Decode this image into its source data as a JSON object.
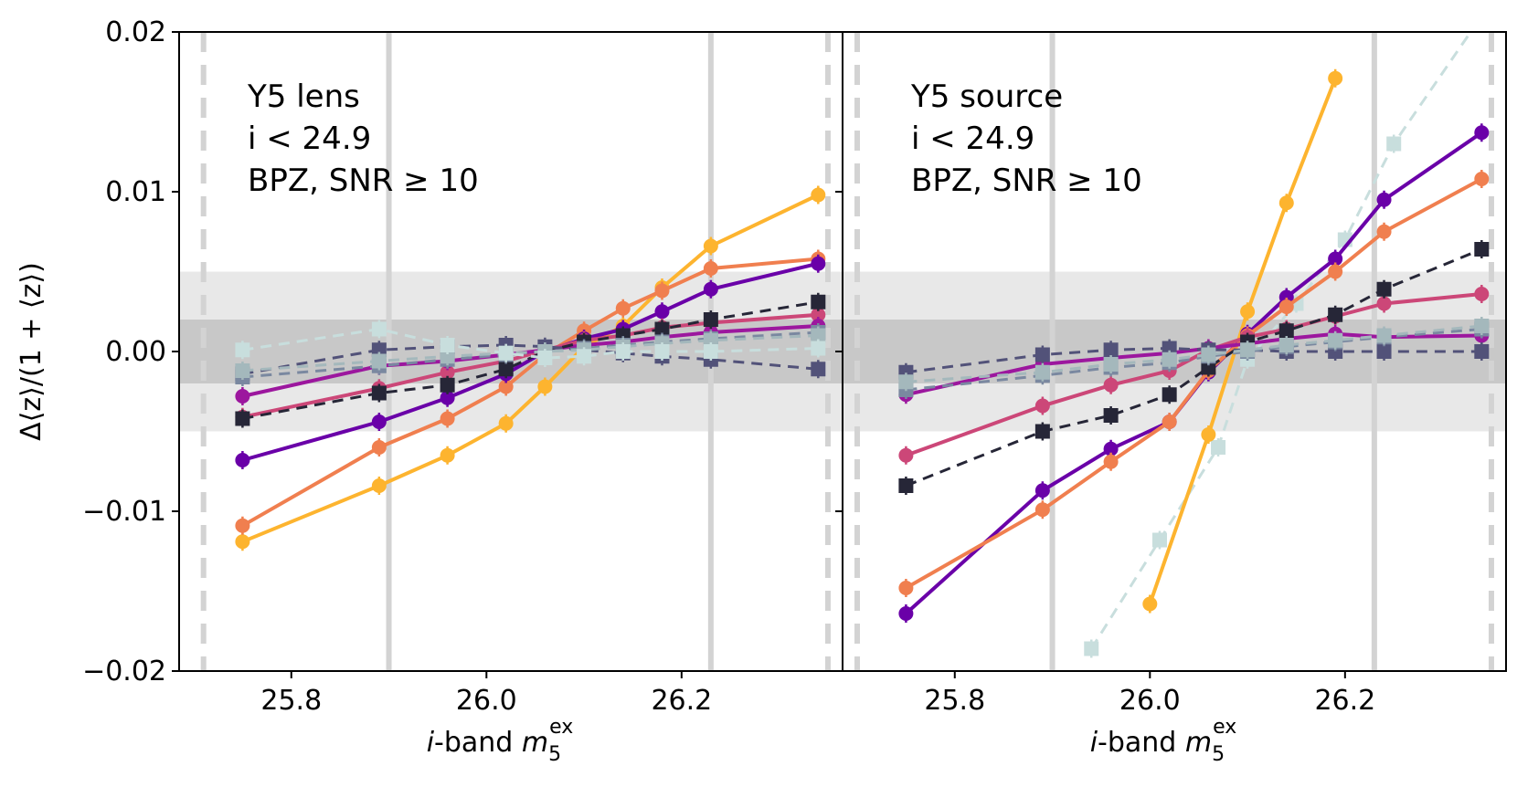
{
  "chart_data": {
    "type": "line",
    "ylabel": "Δ⟨z⟩/(1 + ⟨z⟩)",
    "ylim": [
      -0.02,
      0.02
    ],
    "yticks": [
      {
        "value": 0.02,
        "label": "0.02"
      },
      {
        "value": 0.01,
        "label": "0.01"
      },
      {
        "value": 0.0,
        "label": "0.00"
      },
      {
        "value": -0.01,
        "label": "−0.01"
      },
      {
        "value": -0.02,
        "label": "−0.02"
      }
    ],
    "xlabel": {
      "prefix": "i",
      "mid": "-band ",
      "var": "m",
      "sub": "5",
      "sup": "ex"
    },
    "xlim": [
      25.685,
      26.365
    ],
    "xticks": [
      {
        "value": 25.8,
        "label": "25.8"
      },
      {
        "value": 26.0,
        "label": "26.0"
      },
      {
        "value": 26.2,
        "label": "26.2"
      }
    ],
    "bands": [
      {
        "y0": -0.005,
        "y1": 0.005,
        "color": "#e8e8e8"
      },
      {
        "y0": -0.002,
        "y1": 0.002,
        "color": "#c8c8c8"
      }
    ],
    "panels": [
      {
        "id": "lens",
        "annotation": [
          "Y5 lens",
          "i < 24.9",
          "BPZ, SNR ≥ 10"
        ],
        "vlines_solid": [
          25.9,
          26.23
        ],
        "vlines_dashed": [
          25.71,
          26.35
        ],
        "series": [
          {
            "color": "#fdb42f",
            "style": "solid",
            "marker": "circle",
            "x": [
              25.75,
              25.89,
              25.96,
              26.02,
              26.06,
              26.1,
              26.14,
              26.18,
              26.23,
              26.34
            ],
            "y": [
              -0.0119,
              -0.0084,
              -0.0065,
              -0.0045,
              -0.0022,
              0.0003,
              0.0016,
              0.004,
              0.0066,
              0.0098
            ]
          },
          {
            "color": "#f07f4f",
            "style": "solid",
            "marker": "circle",
            "x": [
              25.75,
              25.89,
              25.96,
              26.02,
              26.06,
              26.1,
              26.14,
              26.18,
              26.23,
              26.34
            ],
            "y": [
              -0.0109,
              -0.006,
              -0.0042,
              -0.0022,
              -0.0002,
              0.0013,
              0.0027,
              0.0038,
              0.0052,
              0.0058
            ]
          },
          {
            "color": "#6a00a8",
            "style": "solid",
            "marker": "circle",
            "x": [
              25.75,
              25.89,
              25.96,
              26.02,
              26.06,
              26.1,
              26.14,
              26.18,
              26.23,
              26.34
            ],
            "y": [
              -0.0068,
              -0.0044,
              -0.0029,
              -0.0014,
              0.0,
              0.0008,
              0.0014,
              0.0025,
              0.0039,
              0.0055
            ]
          },
          {
            "color": "#cc4778",
            "style": "solid",
            "marker": "circle",
            "x": [
              25.75,
              25.89,
              25.96,
              26.02,
              26.06,
              26.1,
              26.14,
              26.18,
              26.23,
              26.34
            ],
            "y": [
              -0.0041,
              -0.0023,
              -0.0013,
              -0.0006,
              0.0001,
              0.0007,
              0.001,
              0.0015,
              0.0018,
              0.0023
            ]
          },
          {
            "color": "#9c179e",
            "style": "solid",
            "marker": "circle",
            "x": [
              25.75,
              25.89,
              25.96,
              26.02,
              26.06,
              26.1,
              26.14,
              26.18,
              26.23,
              26.34
            ],
            "y": [
              -0.0028,
              -0.0009,
              -0.0006,
              -0.0002,
              0.0001,
              0.0004,
              0.0006,
              0.0009,
              0.0012,
              0.0016
            ]
          },
          {
            "color": "#262637",
            "style": "dashed",
            "marker": "square",
            "x": [
              25.75,
              25.89,
              25.96,
              26.02,
              26.06,
              26.1,
              26.14,
              26.18,
              26.23,
              26.34
            ],
            "y": [
              -0.0042,
              -0.0026,
              -0.0021,
              -0.0011,
              0.0,
              0.0006,
              0.001,
              0.0014,
              0.002,
              0.0031
            ]
          },
          {
            "color": "#525279",
            "style": "dashed",
            "marker": "square",
            "x": [
              25.75,
              25.89,
              25.96,
              26.02,
              26.06,
              26.1,
              26.14,
              26.18,
              26.23,
              26.34
            ],
            "y": [
              -0.0014,
              0.0001,
              0.0003,
              0.0004,
              0.0003,
              0.0001,
              -0.0001,
              -0.0003,
              -0.0005,
              -0.0011
            ]
          },
          {
            "color": "#7a88a0",
            "style": "dashed",
            "marker": "square",
            "x": [
              25.75,
              25.89,
              25.96,
              26.02,
              26.06,
              26.1,
              26.14,
              26.18,
              26.23,
              26.34
            ],
            "y": [
              -0.0016,
              -0.0009,
              -0.0005,
              -0.0002,
              0.0,
              0.0002,
              0.0004,
              0.0006,
              0.0008,
              0.0012
            ]
          },
          {
            "color": "#a4b8bc",
            "style": "dashed",
            "marker": "square",
            "x": [
              25.75,
              25.89,
              25.96,
              26.02,
              26.06,
              26.1,
              26.14,
              26.18,
              26.23,
              26.34
            ],
            "y": [
              -0.0012,
              -0.0006,
              -0.0003,
              -0.0001,
              0.0,
              0.0001,
              0.0003,
              0.0005,
              0.0007,
              0.001
            ]
          },
          {
            "color": "#c8dedd",
            "style": "dashed",
            "marker": "square",
            "x": [
              25.75,
              25.89,
              25.96,
              26.02,
              26.06,
              26.1,
              26.14,
              26.18,
              26.23,
              26.34
            ],
            "y": [
              0.0001,
              0.0014,
              0.0004,
              -0.0001,
              -0.0004,
              -0.0003,
              0.0,
              0.0,
              0.0,
              0.0002
            ]
          }
        ]
      },
      {
        "id": "source",
        "annotation": [
          "Y5 source",
          "i < 24.9",
          "BPZ, SNR ≥ 10"
        ],
        "vlines_solid": [
          25.9,
          26.23
        ],
        "vlines_dashed": [
          25.7,
          26.35
        ],
        "series": [
          {
            "color": "#c8dedd",
            "style": "dashed",
            "marker": "square",
            "x": [
              25.94,
              26.01,
              26.07,
              26.1,
              26.15,
              26.2,
              26.25,
              26.34
            ],
            "y": [
              -0.0186,
              -0.0118,
              -0.006,
              -0.0005,
              0.003,
              0.007,
              0.013,
              0.021
            ]
          },
          {
            "color": "#fdb42f",
            "style": "solid",
            "marker": "circle",
            "x": [
              26.0,
              26.06,
              26.1,
              26.14,
              26.19
            ],
            "y": [
              -0.0158,
              -0.0052,
              0.0025,
              0.0093,
              0.0171
            ]
          },
          {
            "color": "#6a00a8",
            "style": "solid",
            "marker": "circle",
            "x": [
              25.75,
              25.89,
              25.96,
              26.02,
              26.06,
              26.1,
              26.14,
              26.19,
              26.24,
              26.34
            ],
            "y": [
              -0.0164,
              -0.0087,
              -0.0061,
              -0.0044,
              -0.0013,
              0.0011,
              0.0034,
              0.0058,
              0.0095,
              0.0137
            ]
          },
          {
            "color": "#f07f4f",
            "style": "solid",
            "marker": "circle",
            "x": [
              25.75,
              25.89,
              25.96,
              26.02,
              26.06,
              26.1,
              26.14,
              26.19,
              26.24,
              26.34
            ],
            "y": [
              -0.0148,
              -0.0099,
              -0.0069,
              -0.0044,
              -0.0012,
              0.001,
              0.0028,
              0.005,
              0.0075,
              0.0108
            ]
          },
          {
            "color": "#cc4778",
            "style": "solid",
            "marker": "circle",
            "x": [
              25.75,
              25.89,
              25.96,
              26.02,
              26.06,
              26.1,
              26.14,
              26.19,
              26.24,
              26.34
            ],
            "y": [
              -0.0065,
              -0.0034,
              -0.0021,
              -0.0012,
              0.0001,
              0.0009,
              0.0014,
              0.0022,
              0.003,
              0.0036
            ]
          },
          {
            "color": "#9c179e",
            "style": "solid",
            "marker": "circle",
            "x": [
              25.75,
              25.89,
              25.96,
              26.02,
              26.06,
              26.1,
              26.14,
              26.19,
              26.24,
              26.34
            ],
            "y": [
              -0.0027,
              -0.0008,
              -0.0004,
              -0.0001,
              0.0002,
              0.0005,
              0.0008,
              0.0011,
              0.0009,
              0.001
            ]
          },
          {
            "color": "#262637",
            "style": "dashed",
            "marker": "square",
            "x": [
              25.75,
              25.89,
              25.96,
              26.02,
              26.06,
              26.1,
              26.14,
              26.19,
              26.24,
              26.34
            ],
            "y": [
              -0.0084,
              -0.005,
              -0.004,
              -0.0027,
              -0.001,
              0.0006,
              0.0013,
              0.0023,
              0.0039,
              0.0064
            ]
          },
          {
            "color": "#525279",
            "style": "dashed",
            "marker": "square",
            "x": [
              25.75,
              25.89,
              25.96,
              26.02,
              26.06,
              26.1,
              26.14,
              26.19,
              26.24,
              26.34
            ],
            "y": [
              -0.0013,
              -0.0002,
              0.0001,
              0.0002,
              0.0001,
              0.0001,
              0.0,
              0.0,
              0.0,
              0.0
            ]
          },
          {
            "color": "#7a88a0",
            "style": "dashed",
            "marker": "square",
            "x": [
              25.75,
              25.89,
              25.96,
              26.02,
              26.06,
              26.1,
              26.14,
              26.19,
              26.24,
              26.34
            ],
            "y": [
              -0.0024,
              -0.0015,
              -0.001,
              -0.0007,
              -0.0003,
              0.0,
              0.0003,
              0.0006,
              0.0009,
              0.0014
            ]
          },
          {
            "color": "#a4b8bc",
            "style": "dashed",
            "marker": "square",
            "x": [
              25.75,
              25.89,
              25.96,
              26.02,
              26.06,
              26.1,
              26.14,
              26.19,
              26.24,
              26.34
            ],
            "y": [
              -0.0019,
              -0.0013,
              -0.0008,
              -0.0005,
              -0.0002,
              0.0001,
              0.0004,
              0.0007,
              0.001,
              0.0016
            ]
          }
        ]
      }
    ]
  }
}
